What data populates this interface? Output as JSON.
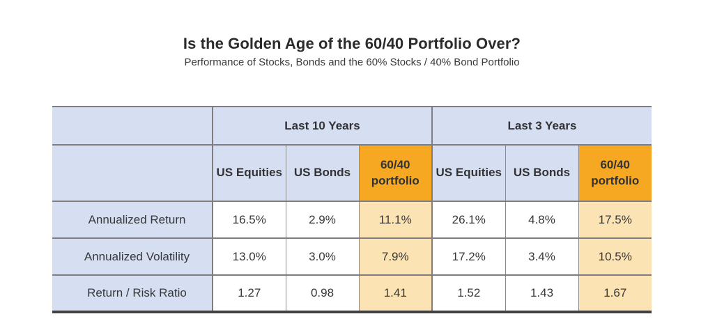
{
  "page": {
    "title": "Is the Golden Age of the 60/40 Portfolio Over?",
    "subtitle": "Performance of Stocks, Bonds and the 60% Stocks / 40% Bond Portfolio"
  },
  "colors": {
    "header_blue": "#d5dff1",
    "highlight_orange": "#f7a823",
    "highlight_peach": "#fbe3b4",
    "border_gray": "#7e7e80",
    "border_dark": "#414143",
    "text": "#38383a"
  },
  "chart_data": {
    "type": "table",
    "title": "Is the Golden Age of the 60/40 Portfolio Over?",
    "subtitle": "Performance of Stocks, Bonds and the 60% Stocks / 40% Bond Portfolio",
    "column_groups": [
      {
        "label": "Last 10 Years",
        "span": 3
      },
      {
        "label": "Last 3 Years",
        "span": 3
      }
    ],
    "columns": [
      "US Equities",
      "US Bonds",
      "60/40 portfolio",
      "US Equities",
      "US Bonds",
      "60/40 portfolio"
    ],
    "rows": [
      {
        "label": "Annualized Return",
        "values": [
          "16.5%",
          "2.9%",
          "11.1%",
          "26.1%",
          "4.8%",
          "17.5%"
        ]
      },
      {
        "label": "Annualized Volatility",
        "values": [
          "13.0%",
          "3.0%",
          "7.9%",
          "17.2%",
          "3.4%",
          "10.5%"
        ]
      },
      {
        "label": "Return / Risk Ratio",
        "values": [
          "1.27",
          "0.98",
          "1.41",
          "1.52",
          "1.43",
          "1.67"
        ]
      }
    ],
    "highlighted_columns": [
      2,
      5
    ]
  },
  "table": {
    "group_headers": {
      "g1": "Last 10 Years",
      "g2": "Last 3 Years"
    },
    "col_headers": {
      "c0": "US Equities",
      "c1": "US Bonds",
      "c2": "60/40 portfolio",
      "c3": "US Equities",
      "c4": "US Bonds",
      "c5": "60/40 portfolio"
    },
    "rows": {
      "r0": {
        "label": "Annualized Return",
        "v0": "16.5%",
        "v1": "2.9%",
        "v2": "11.1%",
        "v3": "26.1%",
        "v4": "4.8%",
        "v5": "17.5%"
      },
      "r1": {
        "label": "Annualized Volatility",
        "v0": "13.0%",
        "v1": "3.0%",
        "v2": "7.9%",
        "v3": "17.2%",
        "v4": "3.4%",
        "v5": "10.5%"
      },
      "r2": {
        "label": "Return / Risk Ratio",
        "v0": "1.27",
        "v1": "0.98",
        "v2": "1.41",
        "v3": "1.52",
        "v4": "1.43",
        "v5": "1.67"
      }
    }
  }
}
